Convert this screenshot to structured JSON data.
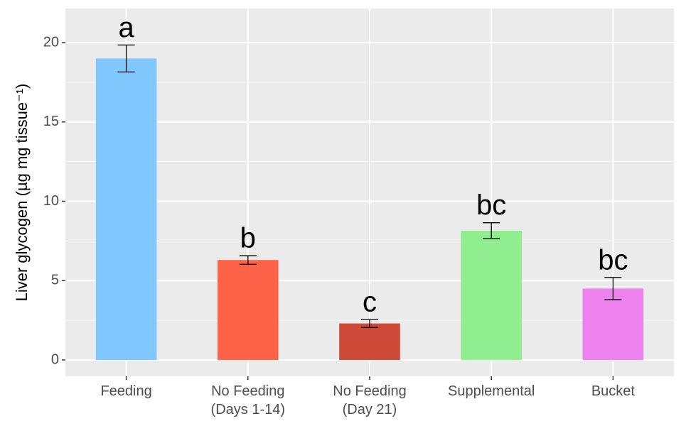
{
  "chart_data": {
    "type": "bar",
    "y_label": "Liver glycogen (µg mg tissue⁻¹)",
    "categories": [
      "Feeding",
      "No Feeding\n(Days 1-14)",
      "No Feeding\n(Day 21)",
      "Supplemental",
      "Bucket"
    ],
    "values": [
      19.0,
      6.3,
      2.3,
      8.15,
      4.5
    ],
    "errors": [
      0.85,
      0.27,
      0.25,
      0.5,
      0.7
    ],
    "annotations": [
      "a",
      "b",
      "c",
      "bc",
      "bc"
    ],
    "colors": [
      "#80c8ff",
      "#ff6347",
      "#cd4b36",
      "#90ee90",
      "#ee82ee"
    ],
    "ylim": [
      -1.03,
      22.15
    ],
    "yticks": [
      0,
      5,
      10,
      15,
      20
    ],
    "minor_yticks": [
      2.5,
      7.5,
      12.5,
      17.5
    ],
    "grid": true
  }
}
